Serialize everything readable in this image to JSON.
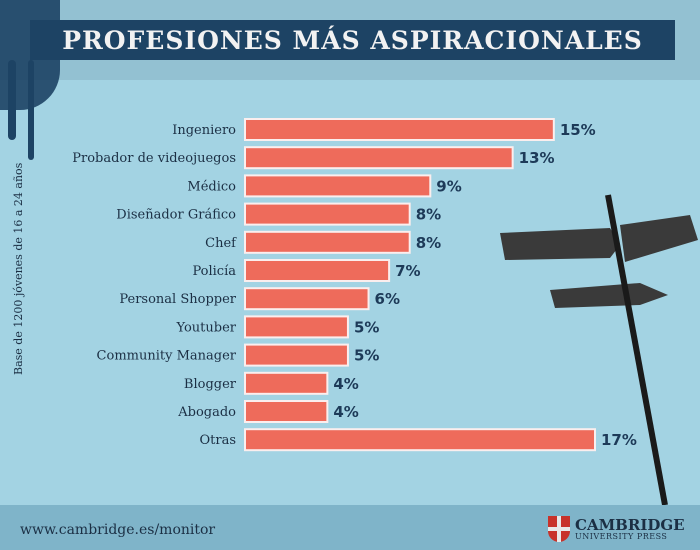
{
  "chart_data": {
    "type": "bar",
    "orientation": "horizontal",
    "title": "PROFESIONES MÁS ASPIRACIONALES",
    "ylabel": "Base de 1200 jóvenes de 16 a 24 años",
    "categories": [
      "Ingeniero",
      "Probador de videojuegos",
      "Médico",
      "Diseñador Gráfico",
      "Chef",
      "Policía",
      "Personal Shopper",
      "Youtuber",
      "Community Manager",
      "Blogger",
      "Abogado",
      "Otras"
    ],
    "values": [
      15,
      13,
      9,
      8,
      8,
      7,
      6,
      5,
      5,
      4,
      4,
      17
    ],
    "value_labels": [
      "15%",
      "13%",
      "9%",
      "8%",
      "8%",
      "7%",
      "6%",
      "5%",
      "5%",
      "4%",
      "4%",
      "17%"
    ],
    "unit": "%",
    "xlim": [
      0,
      17
    ],
    "grid": false,
    "bar_color": "#ee6b5b"
  },
  "footer": {
    "url": "www.cambridge.es/monitor",
    "logo_name": "CAMBRIDGE",
    "logo_sub": "UNIVERSITY PRESS"
  }
}
